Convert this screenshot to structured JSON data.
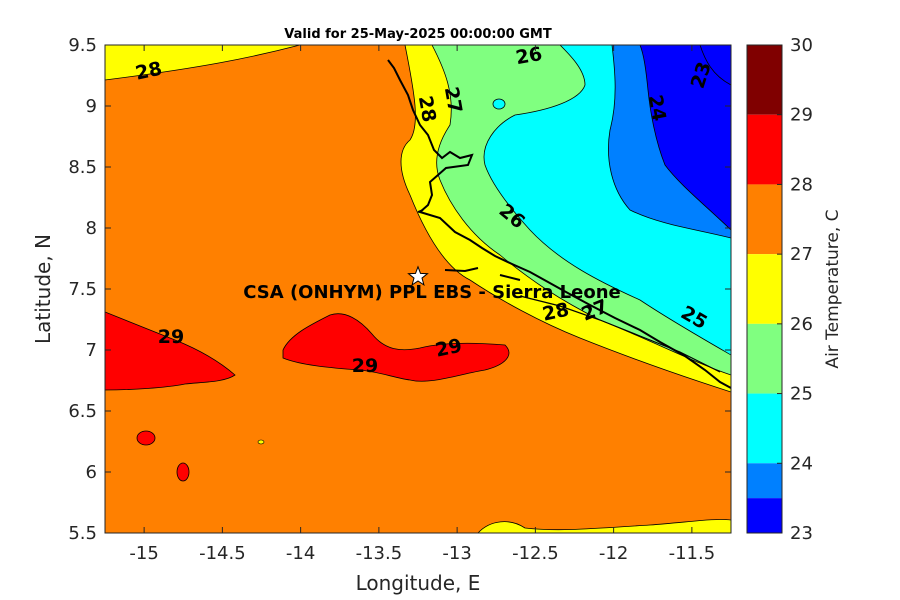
{
  "title": "Valid for 25-May-2025 00:00:00 GMT",
  "x_axis": {
    "label": "Longitude, E",
    "range": [
      -15.25,
      -11.25
    ],
    "ticks": [
      "-15",
      "-14.5",
      "-14",
      "-13.5",
      "-13",
      "-12.5",
      "-12",
      "-11.5"
    ]
  },
  "y_axis": {
    "label": "Latitude, N",
    "range": [
      5.5,
      9.5
    ],
    "ticks": [
      "9.5",
      "9",
      "8.5",
      "8",
      "7.5",
      "7",
      "6.5",
      "6",
      "5.5"
    ]
  },
  "colorbar": {
    "label": "Air Temperature, C",
    "ticks": [
      "30",
      "29",
      "28",
      "27",
      "26",
      "25",
      "24",
      "23"
    ],
    "bands": [
      {
        "from": 29,
        "to": 30,
        "color": "#800000"
      },
      {
        "from": 28,
        "to": 29,
        "color": "#ff0000"
      },
      {
        "from": 27,
        "to": 28,
        "color": "#ff8000"
      },
      {
        "from": 26,
        "to": 27,
        "color": "#ffff00"
      },
      {
        "from": 25,
        "to": 26,
        "color": "#80ff80"
      },
      {
        "from": 24,
        "to": 25,
        "color": "#00ffff"
      },
      {
        "from": 23.5,
        "to": 24,
        "color": "#0080ff"
      },
      {
        "from": 23,
        "to": 23.5,
        "color": "#0000ff"
      }
    ]
  },
  "site": {
    "name": "CSA (ONHYM) PPL EBS  - Sierra Leone",
    "lon": -13.25,
    "lat": 7.6
  },
  "contour_labels": {
    "c28a": "28",
    "c26a": "26",
    "c27a": "27",
    "c28b": "28",
    "c24": "24",
    "c23": "23",
    "c26b": "26",
    "c25": "25",
    "c27b": "27",
    "c28c": "28",
    "c29a": "29",
    "c29b": "29",
    "c29c": "29"
  }
}
